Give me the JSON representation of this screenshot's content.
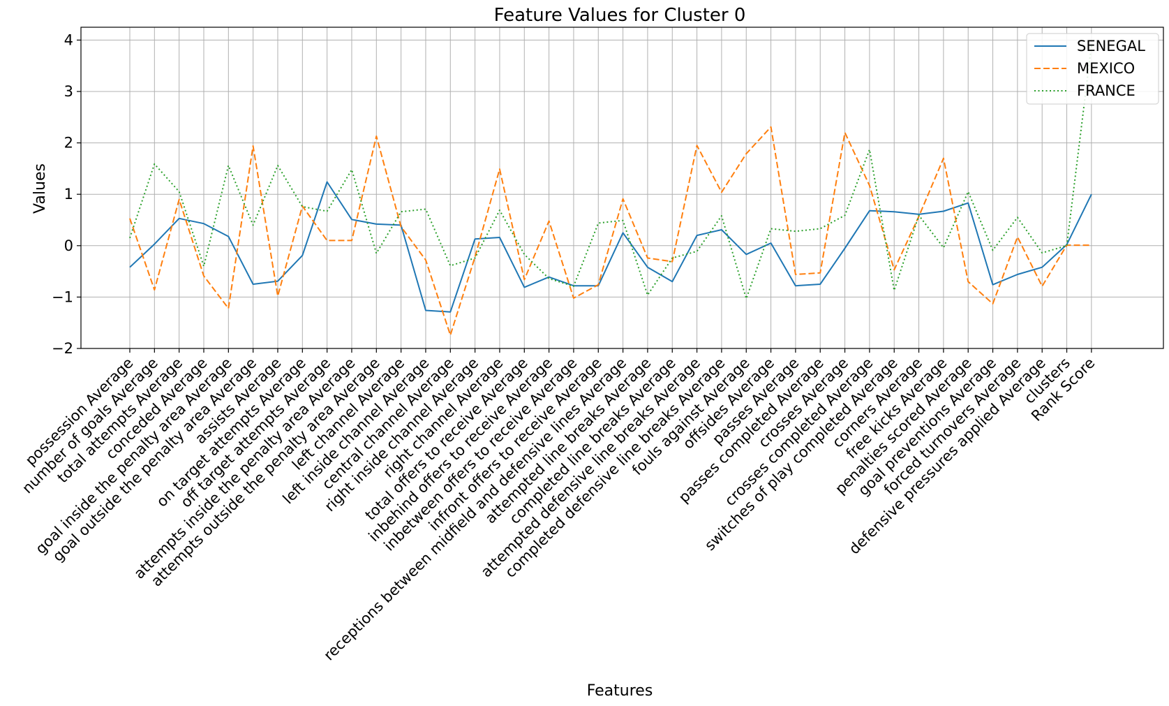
{
  "chart_data": {
    "type": "line",
    "title": "Feature Values for Cluster 0",
    "xlabel": "Features",
    "ylabel": "Values",
    "ylim": [
      -2,
      4.25
    ],
    "yticks": [
      -2,
      -1,
      0,
      1,
      2,
      3,
      4
    ],
    "ytick_labels": [
      "−2",
      "−1",
      "0",
      "1",
      "2",
      "3",
      "4"
    ],
    "grid": true,
    "legend_position": "top-right",
    "categories": [
      "possession Average",
      "number of goals Average",
      "total attempts Average",
      "conceded Average",
      "goal inside the penalty area Average",
      "goal outside the penalty area Average",
      "assists Average",
      "on target attempts Average",
      "off target attempts Average",
      "attempts inside the penalty area  Average",
      "attempts outside the penalty area  Average",
      "left channel Average",
      "left inside channel Average",
      "central channel Average",
      "right inside channel Average",
      "right channel Average",
      "total offers to receive Average",
      "inbehind offers to receive Average",
      "inbetween offers to receive Average",
      "infront offers to receive Average",
      "receptions between midfield and defensive lines Average",
      "attempted line breaks Average",
      "completed line breaks Average",
      "attempted defensive line breaks Average",
      "completed defensive line breaks Average",
      "fouls against Average",
      "offsides Average",
      "passes Average",
      "passes completed Average",
      "crosses Average",
      "crosses completed Average",
      "switches of play completed Average",
      "corners Average",
      "free kicks Average",
      "penalties scored Average",
      "goal preventions Average",
      "forced turnovers Average",
      "defensive pressures applied Average",
      "clusters",
      "Rank Score"
    ],
    "series": [
      {
        "name": "SENEGAL",
        "color": "#1f77b4",
        "style": "solid",
        "values": [
          -0.42,
          0.03,
          0.53,
          0.43,
          0.18,
          -0.75,
          -0.69,
          -0.19,
          1.24,
          0.51,
          0.42,
          0.4,
          -1.26,
          -1.29,
          0.13,
          0.16,
          -0.81,
          -0.61,
          -0.78,
          -0.78,
          0.25,
          -0.42,
          -0.7,
          0.2,
          0.31,
          -0.17,
          0.05,
          -0.78,
          -0.75,
          -0.05,
          0.68,
          0.66,
          0.61,
          0.67,
          0.83,
          -0.76,
          -0.56,
          -0.42,
          0.02,
          1.0
        ]
      },
      {
        "name": "MEXICO",
        "color": "#ff7f0e",
        "style": "dashed",
        "values": [
          0.53,
          -0.86,
          0.9,
          -0.59,
          -1.22,
          1.94,
          -0.98,
          0.77,
          0.1,
          0.1,
          2.13,
          0.37,
          -0.28,
          -1.74,
          -0.22,
          1.49,
          -0.66,
          0.48,
          -1.02,
          -0.76,
          0.91,
          -0.24,
          -0.31,
          1.95,
          1.04,
          1.79,
          2.31,
          -0.56,
          -0.53,
          2.2,
          1.17,
          -0.47,
          0.57,
          1.7,
          -0.7,
          -1.13,
          0.17,
          -0.79,
          0.01,
          0.01
        ]
      },
      {
        "name": "FRANCE",
        "color": "#2ca02c",
        "style": "dotted",
        "values": [
          0.15,
          1.59,
          1.05,
          -0.4,
          1.56,
          0.4,
          1.56,
          0.76,
          0.67,
          1.48,
          -0.15,
          0.66,
          0.71,
          -0.39,
          -0.24,
          0.69,
          -0.17,
          -0.64,
          -0.79,
          0.44,
          0.49,
          -0.96,
          -0.24,
          -0.11,
          0.58,
          -1.03,
          0.33,
          0.28,
          0.33,
          0.59,
          1.87,
          -0.87,
          0.59,
          -0.04,
          1.05,
          -0.09,
          0.55,
          -0.14,
          0.0,
          3.9
        ]
      }
    ]
  }
}
